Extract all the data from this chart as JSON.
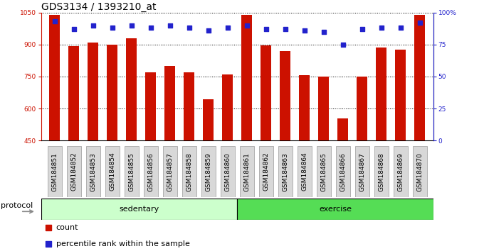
{
  "title": "GDS3134 / 1393210_at",
  "samples": [
    "GSM184851",
    "GSM184852",
    "GSM184853",
    "GSM184854",
    "GSM184855",
    "GSM184856",
    "GSM184857",
    "GSM184858",
    "GSM184859",
    "GSM184860",
    "GSM184861",
    "GSM184862",
    "GSM184863",
    "GSM184864",
    "GSM184865",
    "GSM184866",
    "GSM184867",
    "GSM184868",
    "GSM184869",
    "GSM184870"
  ],
  "counts": [
    1040,
    893,
    910,
    900,
    930,
    770,
    800,
    770,
    645,
    760,
    1040,
    895,
    870,
    755,
    750,
    555,
    750,
    885,
    875,
    1040
  ],
  "percentile_ranks": [
    93,
    87,
    90,
    88,
    90,
    88,
    90,
    88,
    86,
    88,
    90,
    87,
    87,
    86,
    85,
    75,
    87,
    88,
    88,
    92
  ],
  "ylim_left": [
    450,
    1050
  ],
  "ylim_right": [
    0,
    100
  ],
  "yticks_left": [
    450,
    600,
    750,
    900,
    1050
  ],
  "yticks_right": [
    0,
    25,
    50,
    75,
    100
  ],
  "bar_color": "#cc1100",
  "dot_color": "#2222cc",
  "sedentary_color": "#ccffcc",
  "exercise_color": "#55dd55",
  "label_bg_color": "#d8d8d8",
  "title_fontsize": 10,
  "tick_fontsize": 6.5,
  "legend_fontsize": 8,
  "proto_fontsize": 8
}
